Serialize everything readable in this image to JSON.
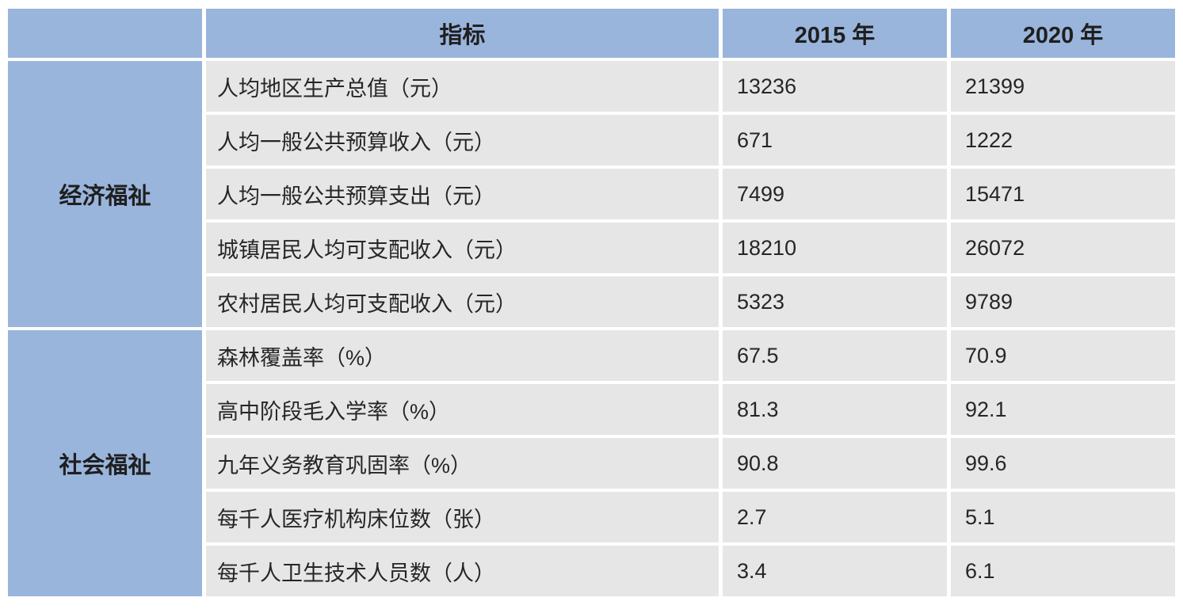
{
  "colors": {
    "header_bg": "#9ab5dc",
    "row_bg": "#e7e6e6",
    "gap": "#ffffff",
    "text": "#262626"
  },
  "table": {
    "header": {
      "category": "",
      "indicator": "指标",
      "y2015": "2015 年",
      "y2020": "2020 年"
    },
    "categories": [
      {
        "name": "经济福祉",
        "rows": [
          {
            "label": "人均地区生产总值（元）",
            "v2015": "13236",
            "v2020": "21399"
          },
          {
            "label": "人均一般公共预算收入（元）",
            "v2015": "671",
            "v2020": "1222"
          },
          {
            "label": "人均一般公共预算支出（元）",
            "v2015": "7499",
            "v2020": "15471"
          },
          {
            "label": "城镇居民人均可支配收入（元）",
            "v2015": "18210",
            "v2020": "26072"
          },
          {
            "label": "农村居民人均可支配收入（元）",
            "v2015": "5323",
            "v2020": "9789"
          }
        ]
      },
      {
        "name": "社会福祉",
        "rows": [
          {
            "label": "森林覆盖率（%）",
            "v2015": "67.5",
            "v2020": "70.9"
          },
          {
            "label": "高中阶段毛入学率（%）",
            "v2015": "81.3",
            "v2020": "92.1"
          },
          {
            "label": "九年义务教育巩固率（%）",
            "v2015": "90.8",
            "v2020": "99.6"
          },
          {
            "label": "每千人医疗机构床位数（张）",
            "v2015": "2.7",
            "v2020": "5.1"
          },
          {
            "label": "每千人卫生技术人员数（人）",
            "v2015": "3.4",
            "v2020": "6.1"
          }
        ]
      }
    ]
  },
  "chart_data": {
    "type": "table",
    "title": "",
    "columns": [
      "",
      "指标",
      "2015 年",
      "2020 年"
    ],
    "rows": [
      [
        "经济福祉",
        "人均地区生产总值（元）",
        13236,
        21399
      ],
      [
        "经济福祉",
        "人均一般公共预算收入（元）",
        671,
        1222
      ],
      [
        "经济福祉",
        "人均一般公共预算支出（元）",
        7499,
        15471
      ],
      [
        "经济福祉",
        "城镇居民人均可支配收入（元）",
        18210,
        26072
      ],
      [
        "经济福祉",
        "农村居民人均可支配收入（元）",
        5323,
        9789
      ],
      [
        "社会福祉",
        "森林覆盖率（%）",
        67.5,
        70.9
      ],
      [
        "社会福祉",
        "高中阶段毛入学率（%）",
        81.3,
        92.1
      ],
      [
        "社会福祉",
        "九年义务教育巩固率（%）",
        90.8,
        99.6
      ],
      [
        "社会福祉",
        "每千人医疗机构床位数（张）",
        2.7,
        5.1
      ],
      [
        "社会福祉",
        "每千人卫生技术人员数（人）",
        3.4,
        6.1
      ]
    ]
  }
}
